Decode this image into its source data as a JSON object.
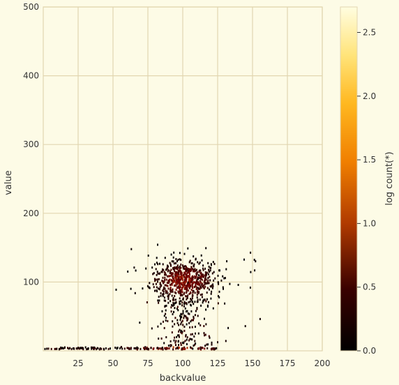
{
  "chart_data": {
    "type": "heatmap",
    "title": "",
    "xlabel": "backvalue",
    "ylabel": "value",
    "xlim": [
      0,
      200
    ],
    "ylim": [
      0,
      500
    ],
    "xticks": [
      25,
      50,
      75,
      100,
      125,
      150,
      175,
      200
    ],
    "yticks": [
      100,
      200,
      300,
      400,
      500
    ],
    "grid": true,
    "colorbar": {
      "label": "log count(*)",
      "range": [
        0.0,
        2.7
      ],
      "ticks": [
        0.0,
        0.5,
        1.0,
        1.5,
        2.0,
        2.5
      ],
      "tick_labels": [
        "0.0",
        "0.5",
        "1.0",
        "1.5",
        "2.0",
        "2.5"
      ],
      "colormap": "afmhot"
    },
    "density_features": [
      {
        "name": "cluster",
        "x_center": 100,
        "y_center": 100,
        "x_spread": 12,
        "y_spread": 15,
        "peak_log_count": 0.9
      },
      {
        "name": "baseline",
        "y_center": 2,
        "x_range": [
          0,
          125
        ],
        "peak_log_count": 0.7
      }
    ]
  },
  "colors": {
    "background": "#fdfbe6",
    "grid": "#e2d6b0",
    "text": "#333333"
  }
}
